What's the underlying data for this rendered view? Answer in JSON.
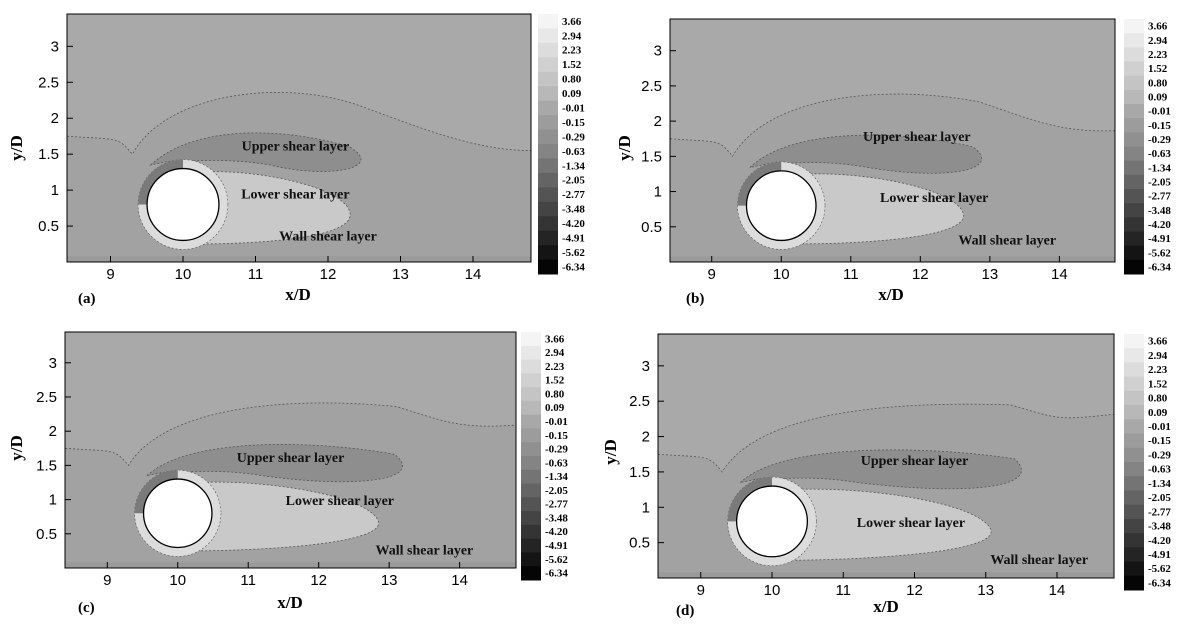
{
  "chart_data": [
    {
      "type": "heatmap",
      "panel_label": "(a)",
      "xlabel": "x/D",
      "ylabel": "y/D",
      "xlim": [
        8.4,
        14.8
      ],
      "ylim": [
        0,
        3.45
      ],
      "x_ticks": [
        "9",
        "10",
        "11",
        "12",
        "13",
        "14"
      ],
      "y_ticks": [
        "0.5",
        "1",
        "1.5",
        "2",
        "2.5",
        "3"
      ],
      "cylinder": {
        "x": 10,
        "y": 0.8,
        "diameter": 1
      },
      "annotations": [
        {
          "text": "Upper shear layer",
          "x": 11.55,
          "y": 1.55
        },
        {
          "text": "Lower shear layer",
          "x": 11.55,
          "y": 0.88
        },
        {
          "text": "Wall shear layer",
          "x": 12.0,
          "y": 0.3
        }
      ],
      "colorbar_levels": [
        "3.66",
        "2.94",
        "2.23",
        "1.52",
        "0.80",
        "0.09",
        "-0.01",
        "-0.15",
        "-0.29",
        "-0.63",
        "-1.34",
        "-2.05",
        "-2.77",
        "-3.48",
        "-4.20",
        "-4.91",
        "-5.62",
        "-6.34"
      ]
    },
    {
      "type": "heatmap",
      "panel_label": "(b)",
      "xlabel": "x/D",
      "ylabel": "y/D",
      "xlim": [
        8.4,
        14.8
      ],
      "ylim": [
        0,
        3.45
      ],
      "x_ticks": [
        "9",
        "10",
        "11",
        "12",
        "13",
        "14"
      ],
      "y_ticks": [
        "0.5",
        "1",
        "1.5",
        "2",
        "2.5",
        "3"
      ],
      "cylinder": {
        "x": 10,
        "y": 0.8,
        "diameter": 1
      },
      "annotations": [
        {
          "text": "Upper shear layer",
          "x": 11.95,
          "y": 1.72
        },
        {
          "text": "Lower shear layer",
          "x": 12.2,
          "y": 0.85
        },
        {
          "text": "Wall shear layer",
          "x": 13.25,
          "y": 0.25
        }
      ],
      "colorbar_levels": [
        "3.66",
        "2.94",
        "2.23",
        "1.52",
        "0.80",
        "0.09",
        "-0.01",
        "-0.15",
        "-0.29",
        "-0.63",
        "-1.34",
        "-2.05",
        "-2.77",
        "-3.48",
        "-4.20",
        "-4.91",
        "-5.62",
        "-6.34"
      ]
    },
    {
      "type": "heatmap",
      "panel_label": "(c)",
      "xlabel": "x/D",
      "ylabel": "y/D",
      "xlim": [
        8.4,
        14.8
      ],
      "ylim": [
        0,
        3.45
      ],
      "x_ticks": [
        "9",
        "10",
        "11",
        "12",
        "13",
        "14"
      ],
      "y_ticks": [
        "0.5",
        "1",
        "1.5",
        "2",
        "2.5",
        "3"
      ],
      "cylinder": {
        "x": 10,
        "y": 0.8,
        "diameter": 1
      },
      "annotations": [
        {
          "text": "Upper shear layer",
          "x": 11.6,
          "y": 1.55
        },
        {
          "text": "Lower shear layer",
          "x": 12.3,
          "y": 0.92
        },
        {
          "text": "Wall shear layer",
          "x": 13.5,
          "y": 0.2
        }
      ],
      "colorbar_levels": [
        "3.66",
        "2.94",
        "2.23",
        "1.52",
        "0.80",
        "0.09",
        "-0.01",
        "-0.15",
        "-0.29",
        "-0.63",
        "-1.34",
        "-2.05",
        "-2.77",
        "-3.48",
        "-4.20",
        "-4.91",
        "-5.62",
        "-6.34"
      ]
    },
    {
      "type": "heatmap",
      "panel_label": "(d)",
      "xlabel": "x/D",
      "ylabel": "y/D",
      "xlim": [
        8.4,
        14.8
      ],
      "ylim": [
        0,
        3.45
      ],
      "x_ticks": [
        "9",
        "10",
        "11",
        "12",
        "13",
        "14"
      ],
      "y_ticks": [
        "0.5",
        "1",
        "1.5",
        "2",
        "2.5",
        "3"
      ],
      "cylinder": {
        "x": 10,
        "y": 0.8,
        "diameter": 1
      },
      "annotations": [
        {
          "text": "Upper shear layer",
          "x": 12.0,
          "y": 1.6
        },
        {
          "text": "Lower shear layer",
          "x": 11.95,
          "y": 0.72
        },
        {
          "text": "Wall shear layer",
          "x": 13.75,
          "y": 0.2
        }
      ],
      "colorbar_levels": [
        "3.66",
        "2.94",
        "2.23",
        "1.52",
        "0.80",
        "0.09",
        "-0.01",
        "-0.15",
        "-0.29",
        "-0.63",
        "-1.34",
        "-2.05",
        "-2.77",
        "-3.48",
        "-4.20",
        "-4.91",
        "-5.62",
        "-6.34"
      ]
    }
  ],
  "colors": {
    "background_field": "#a9a9a9",
    "upper_region": "#999999",
    "dark_core": "#7a7a7a",
    "light_core": "#c9c9c9",
    "contour_line": "#555555"
  }
}
